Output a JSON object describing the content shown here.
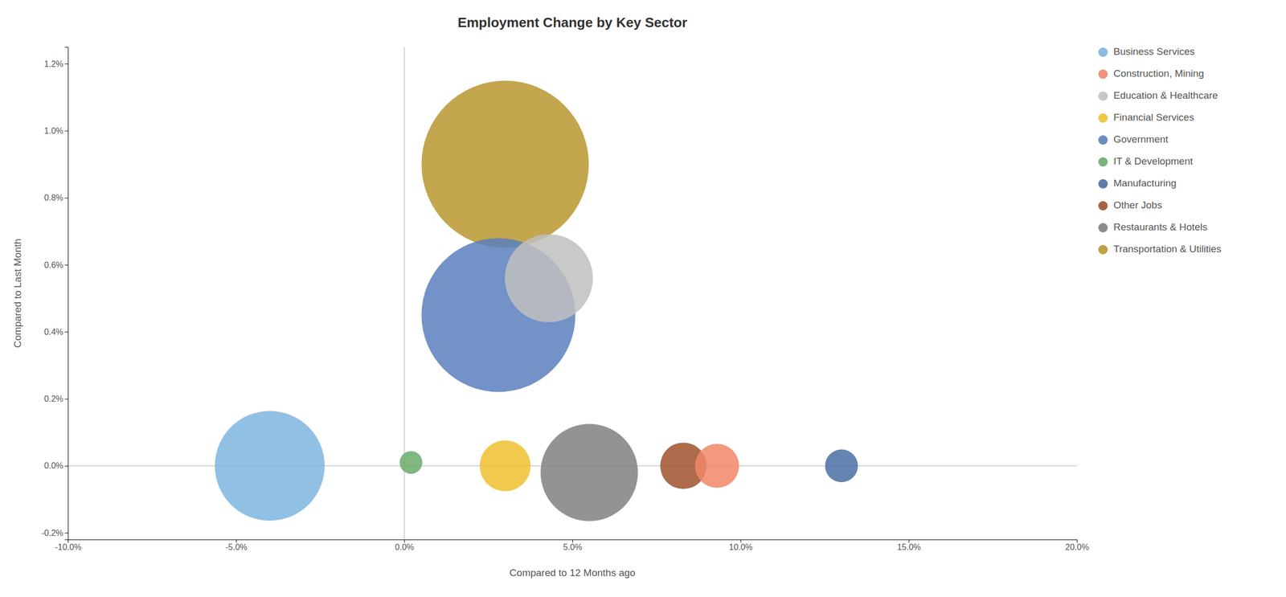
{
  "chart_data": {
    "type": "bubble",
    "title": "Employment Change by Key Sector",
    "xlabel": "Compared to 12 Months ago",
    "ylabel": "Compared to Last Month",
    "xlim": [
      -0.1,
      0.2
    ],
    "ylim": [
      -0.0022,
      0.0125
    ],
    "xticks": [
      {
        "value": -0.1,
        "label": "-10.0%"
      },
      {
        "value": -0.05,
        "label": "-5.0%"
      },
      {
        "value": 0.0,
        "label": "0.0%"
      },
      {
        "value": 0.05,
        "label": "5.0%"
      },
      {
        "value": 0.1,
        "label": "10.0%"
      },
      {
        "value": 0.15,
        "label": "15.0%"
      },
      {
        "value": 0.2,
        "label": "20.0%"
      }
    ],
    "yticks": [
      {
        "value": -0.002,
        "label": "-0.2%"
      },
      {
        "value": 0.0,
        "label": "0.0%"
      },
      {
        "value": 0.002,
        "label": "0.2%"
      },
      {
        "value": 0.004,
        "label": "0.4%"
      },
      {
        "value": 0.006,
        "label": "0.6%"
      },
      {
        "value": 0.008,
        "label": "0.8%"
      },
      {
        "value": 0.01,
        "label": "1.0%"
      },
      {
        "value": 0.012,
        "label": "1.2%"
      }
    ],
    "vlines": [
      0.0
    ],
    "hlines": [
      0.0
    ],
    "grid": false,
    "legend": "right",
    "series": [
      {
        "name": "Business Services",
        "color": "#7eb5e0",
        "x": [
          -0.04
        ],
        "values": [
          0.0
        ],
        "sizes": [
          28000
        ]
      },
      {
        "name": "Construction, Mining",
        "color": "#f0876a",
        "x": [
          0.093
        ],
        "values": [
          0.0
        ],
        "sizes": [
          4500
        ]
      },
      {
        "name": "Education & Healthcare",
        "color": "#c0c0c0",
        "x": [
          0.043
        ],
        "values": [
          0.0056
        ],
        "sizes": [
          18000
        ]
      },
      {
        "name": "Financial Services",
        "color": "#f0c030",
        "x": [
          0.03
        ],
        "values": [
          0.0
        ],
        "sizes": [
          6000
        ]
      },
      {
        "name": "Government",
        "color": "#5b7fbd",
        "x": [
          0.028
        ],
        "values": [
          0.0045
        ],
        "sizes": [
          55000
        ]
      },
      {
        "name": "IT & Development",
        "color": "#6aab6a",
        "x": [
          0.002
        ],
        "values": [
          0.0001
        ],
        "sizes": [
          1200
        ]
      },
      {
        "name": "Manufacturing",
        "color": "#4a6fa5",
        "x": [
          0.13
        ],
        "values": [
          0.0
        ],
        "sizes": [
          2500
        ]
      },
      {
        "name": "Other Jobs",
        "color": "#a0522d",
        "x": [
          0.083
        ],
        "values": [
          0.0
        ],
        "sizes": [
          5000
        ]
      },
      {
        "name": "Restaurants & Hotels",
        "color": "#808080",
        "x": [
          0.055
        ],
        "values": [
          -0.0002
        ],
        "sizes": [
          22000
        ]
      },
      {
        "name": "Transportation & Utilities",
        "color": "#b8962e",
        "x": [
          0.03
        ],
        "values": [
          0.009
        ],
        "sizes": [
          65000
        ]
      }
    ]
  }
}
